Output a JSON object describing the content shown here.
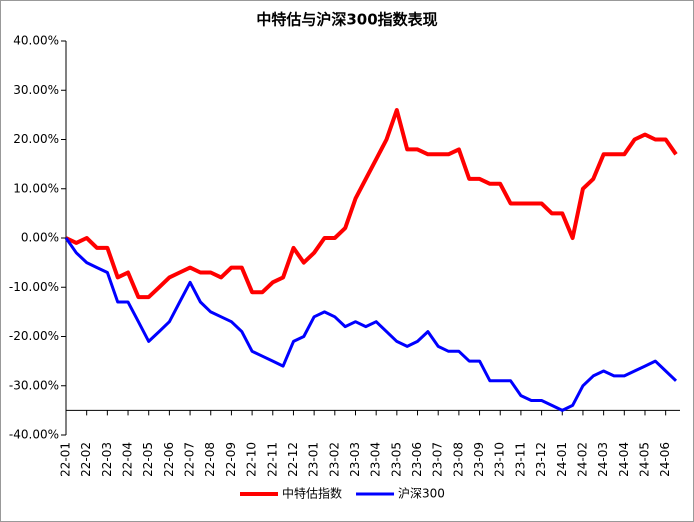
{
  "chart_data": {
    "type": "line",
    "title": "中特估与沪深300指数表现",
    "categories": [
      "22-01",
      null,
      "22-02",
      null,
      "22-03",
      null,
      "22-04",
      null,
      "22-05",
      null,
      "22-06",
      null,
      "22-07",
      null,
      "22-08",
      null,
      "22-09",
      null,
      "22-10",
      null,
      "22-11",
      null,
      "22-12",
      null,
      "23-01",
      null,
      "23-02",
      null,
      "23-03",
      null,
      "23-04",
      null,
      "23-05",
      null,
      "23-06",
      null,
      "23-07",
      null,
      "23-08",
      null,
      "23-09",
      null,
      "23-10",
      null,
      "23-11",
      null,
      "23-12",
      null,
      "24-01",
      null,
      "24-02",
      null,
      "24-03",
      null,
      "24-04",
      null,
      "24-05",
      null,
      "24-06",
      null
    ],
    "series": [
      {
        "name": "中特估指数",
        "color": "#ff0000",
        "values": [
          0,
          -1,
          0,
          -2,
          -2,
          -8,
          -7,
          -12,
          -12,
          -10,
          -8,
          -7,
          -6,
          -7,
          -7,
          -8,
          -6,
          -6,
          -11,
          -11,
          -9,
          -8,
          -2,
          -5,
          -3,
          0,
          0,
          2,
          8,
          12,
          16,
          20,
          26,
          18,
          18,
          17,
          17,
          17,
          18,
          12,
          12,
          11,
          11,
          7,
          7,
          7,
          7,
          5,
          5,
          0,
          10,
          12,
          17,
          17,
          17,
          20,
          21,
          20,
          20,
          17
        ]
      },
      {
        "name": "沪深300",
        "color": "#0000ff",
        "values": [
          0,
          -3,
          -5,
          -6,
          -7,
          -13,
          -13,
          -17,
          -21,
          -19,
          -17,
          -13,
          -9,
          -13,
          -15,
          -16,
          -17,
          -19,
          -23,
          -24,
          -25,
          -26,
          -21,
          -20,
          -16,
          -15,
          -16,
          -18,
          -17,
          -18,
          -17,
          -19,
          -21,
          -22,
          -21,
          -19,
          -22,
          -23,
          -23,
          -25,
          -25,
          -29,
          -29,
          -29,
          -32,
          -33,
          -33,
          -34,
          -35,
          -34,
          -30,
          -28,
          -27,
          -28,
          -28,
          -27,
          -26,
          -25,
          -27,
          -29
        ]
      }
    ],
    "ylim": [
      -40,
      40
    ],
    "yticks": [
      {
        "value": -40,
        "label": "-40.00%"
      },
      {
        "value": -30,
        "label": "-30.00%"
      },
      {
        "value": -20,
        "label": "-20.00%"
      },
      {
        "value": -10,
        "label": "-10.00%"
      },
      {
        "value": 0,
        "label": "0.00%"
      },
      {
        "value": 10,
        "label": "10.00%"
      },
      {
        "value": 20,
        "label": "20.00%"
      },
      {
        "value": 30,
        "label": "30.00%"
      },
      {
        "value": 40,
        "label": "40.00%"
      }
    ],
    "xaxis_cross": -35,
    "grid": false,
    "legend": "bottom"
  }
}
